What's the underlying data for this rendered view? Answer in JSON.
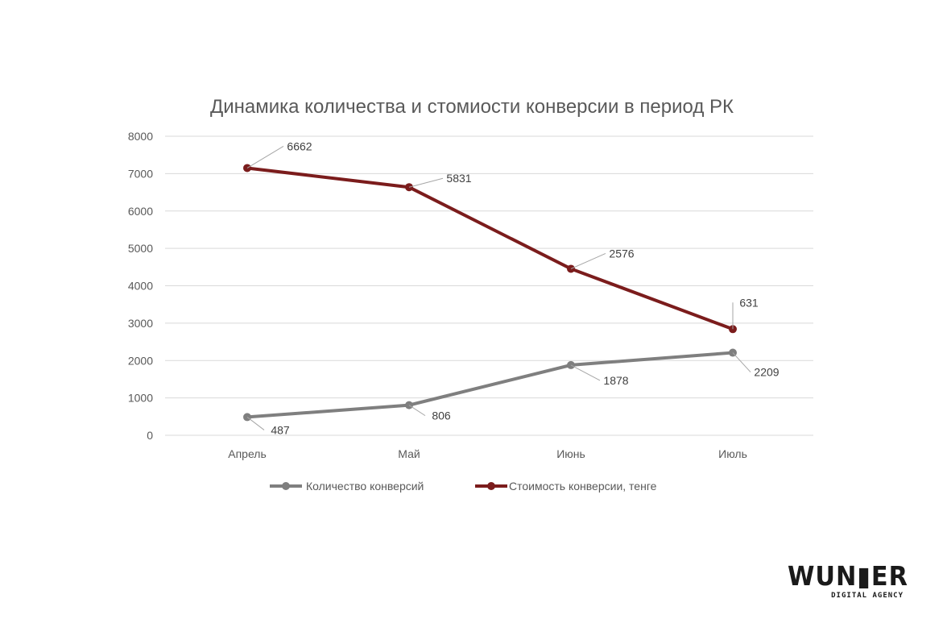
{
  "chart_data": {
    "type": "line",
    "stacked": true,
    "title": "Динамика количества и стомиости конверсии в период РК",
    "xlabel": "",
    "ylabel": "",
    "categories": [
      "Апрель",
      "Май",
      "Июнь",
      "Июль"
    ],
    "ylim": [
      0,
      8000
    ],
    "yticks": [
      0,
      1000,
      2000,
      3000,
      4000,
      5000,
      6000,
      7000,
      8000
    ],
    "grid": true,
    "legend": "bottom",
    "series": [
      {
        "name": "Количество конверсий",
        "values": [
          487,
          806,
          1878,
          2209
        ],
        "color": "#7f7f7f"
      },
      {
        "name": "Стоимость конверсии, тенге",
        "values": [
          6662,
          5831,
          2576,
          631
        ],
        "color": "#7b1c1c"
      }
    ]
  },
  "logo": {
    "main": "WUNDER",
    "sub": "DIGITAL AGENCY"
  }
}
